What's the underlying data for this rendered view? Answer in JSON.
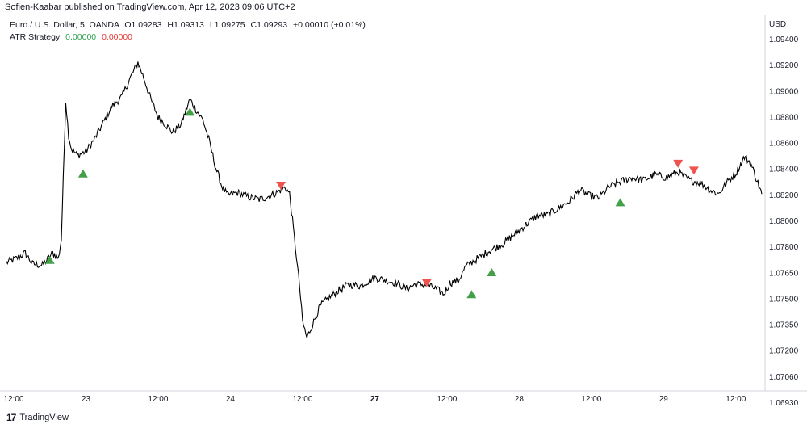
{
  "header": {
    "published": "Sofien-Kaabar published on TradingView.com, Apr 12, 2023 09:06 UTC+2"
  },
  "legend": {
    "symbol": "Euro / U.S. Dollar, 5, OANDA",
    "open": "O1.09283",
    "high": "H1.09313",
    "low": "L1.09275",
    "close": "C1.09293",
    "change": "+0.00010 (+0.01%)",
    "indicator": "ATR Strategy",
    "ind_val1": "0.00000",
    "ind_val2": "0.00000"
  },
  "footer": {
    "brand": "TradingView",
    "logo": "17"
  },
  "chart_data": {
    "type": "line",
    "title": "",
    "currency_label": "USD",
    "y_ticks": [
      "1.09400",
      "1.09200",
      "1.09000",
      "1.08800",
      "1.08600",
      "1.08400",
      "1.08200",
      "1.08000",
      "1.07800",
      "1.07650",
      "1.07500",
      "1.07350",
      "1.07200",
      "1.07060",
      "1.06930"
    ],
    "x_ticks": [
      {
        "label": "12:00",
        "t": 0
      },
      {
        "label": "23",
        "t": 0.5
      },
      {
        "label": "12:00",
        "t": 1
      },
      {
        "label": "24",
        "t": 1.5
      },
      {
        "label": "12:00",
        "t": 2
      },
      {
        "label": "27",
        "t": 2.5
      },
      {
        "label": "12:00",
        "t": 3
      },
      {
        "label": "28",
        "t": 3.5
      },
      {
        "label": "12:00",
        "t": 4
      },
      {
        "label": "29",
        "t": 4.5
      },
      {
        "label": "12:00",
        "t": 5
      }
    ],
    "xlim": [
      -0.05,
      5.18
    ],
    "ylim": [
      1.0693,
      1.0945
    ],
    "series": [
      {
        "values": [
          [
            -0.05,
            1.0783
          ],
          [
            0.02,
            1.0786
          ],
          [
            0.08,
            1.079
          ],
          [
            0.13,
            1.0782
          ],
          [
            0.2,
            1.0781
          ],
          [
            0.27,
            1.079
          ],
          [
            0.31,
            1.0786
          ],
          [
            0.33,
            1.08
          ],
          [
            0.35,
            1.0866
          ],
          [
            0.36,
            1.0901
          ],
          [
            0.38,
            1.0876
          ],
          [
            0.4,
            1.0866
          ],
          [
            0.44,
            1.0861
          ],
          [
            0.5,
            1.0864
          ],
          [
            0.56,
            1.0873
          ],
          [
            0.62,
            1.0885
          ],
          [
            0.68,
            1.0897
          ],
          [
            0.75,
            1.0904
          ],
          [
            0.8,
            1.0916
          ],
          [
            0.86,
            1.0929
          ],
          [
            0.9,
            1.0918
          ],
          [
            0.95,
            1.0902
          ],
          [
            1.0,
            1.0889
          ],
          [
            1.04,
            1.0885
          ],
          [
            1.1,
            1.0878
          ],
          [
            1.16,
            1.0884
          ],
          [
            1.22,
            1.0902
          ],
          [
            1.26,
            1.0895
          ],
          [
            1.31,
            1.0887
          ],
          [
            1.35,
            1.0873
          ],
          [
            1.4,
            1.0852
          ],
          [
            1.44,
            1.0839
          ],
          [
            1.48,
            1.0832
          ],
          [
            1.55,
            1.0834
          ],
          [
            1.62,
            1.0831
          ],
          [
            1.7,
            1.0829
          ],
          [
            1.76,
            1.0831
          ],
          [
            1.82,
            1.0834
          ],
          [
            1.88,
            1.0838
          ],
          [
            1.91,
            1.0833
          ],
          [
            1.95,
            1.0795
          ],
          [
            1.98,
            1.0765
          ],
          [
            2.0,
            1.074
          ],
          [
            2.03,
            1.0728
          ],
          [
            2.07,
            1.0738
          ],
          [
            2.12,
            1.0751
          ],
          [
            2.18,
            1.0757
          ],
          [
            2.24,
            1.0762
          ],
          [
            2.32,
            1.0767
          ],
          [
            2.4,
            1.0766
          ],
          [
            2.5,
            1.0772
          ],
          [
            2.58,
            1.077
          ],
          [
            2.65,
            1.0768
          ],
          [
            2.72,
            1.0764
          ],
          [
            2.78,
            1.0767
          ],
          [
            2.85,
            1.0767
          ],
          [
            2.92,
            1.0764
          ],
          [
            2.98,
            1.076
          ],
          [
            3.02,
            1.0768
          ],
          [
            3.08,
            1.077
          ],
          [
            3.13,
            1.078
          ],
          [
            3.18,
            1.0784
          ],
          [
            3.23,
            1.0787
          ],
          [
            3.3,
            1.0792
          ],
          [
            3.38,
            1.0796
          ],
          [
            3.46,
            1.0803
          ],
          [
            3.54,
            1.081
          ],
          [
            3.62,
            1.0817
          ],
          [
            3.7,
            1.0818
          ],
          [
            3.78,
            1.0823
          ],
          [
            3.85,
            1.0828
          ],
          [
            3.92,
            1.0836
          ],
          [
            3.98,
            1.0832
          ],
          [
            4.05,
            1.083
          ],
          [
            4.12,
            1.0838
          ],
          [
            4.2,
            1.0842
          ],
          [
            4.28,
            1.0845
          ],
          [
            4.36,
            1.0843
          ],
          [
            4.44,
            1.0847
          ],
          [
            4.52,
            1.0845
          ],
          [
            4.6,
            1.0849
          ],
          [
            4.68,
            1.0843
          ],
          [
            4.76,
            1.0841
          ],
          [
            4.82,
            1.0836
          ],
          [
            4.88,
            1.0833
          ],
          [
            4.95,
            1.0843
          ],
          [
            5.0,
            1.0848
          ],
          [
            5.06,
            1.086
          ],
          [
            5.1,
            1.0856
          ],
          [
            5.14,
            1.0845
          ],
          [
            5.18,
            1.0833
          ]
        ]
      }
    ],
    "signals": [
      {
        "type": "buy",
        "t": 0.25,
        "y": 1.0785
      },
      {
        "type": "buy",
        "t": 0.48,
        "y": 1.0848
      },
      {
        "type": "buy",
        "t": 1.22,
        "y": 1.0893
      },
      {
        "type": "sell",
        "t": 1.85,
        "y": 1.0839
      },
      {
        "type": "sell",
        "t": 2.86,
        "y": 1.0768
      },
      {
        "type": "buy",
        "t": 3.17,
        "y": 1.076
      },
      {
        "type": "buy",
        "t": 3.31,
        "y": 1.0776
      },
      {
        "type": "buy",
        "t": 4.2,
        "y": 1.0827
      },
      {
        "type": "sell",
        "t": 4.6,
        "y": 1.0855
      },
      {
        "type": "sell",
        "t": 4.71,
        "y": 1.085
      }
    ],
    "colors": {
      "line": "#000000",
      "buy": "#43a047",
      "sell": "#ef5350"
    }
  }
}
